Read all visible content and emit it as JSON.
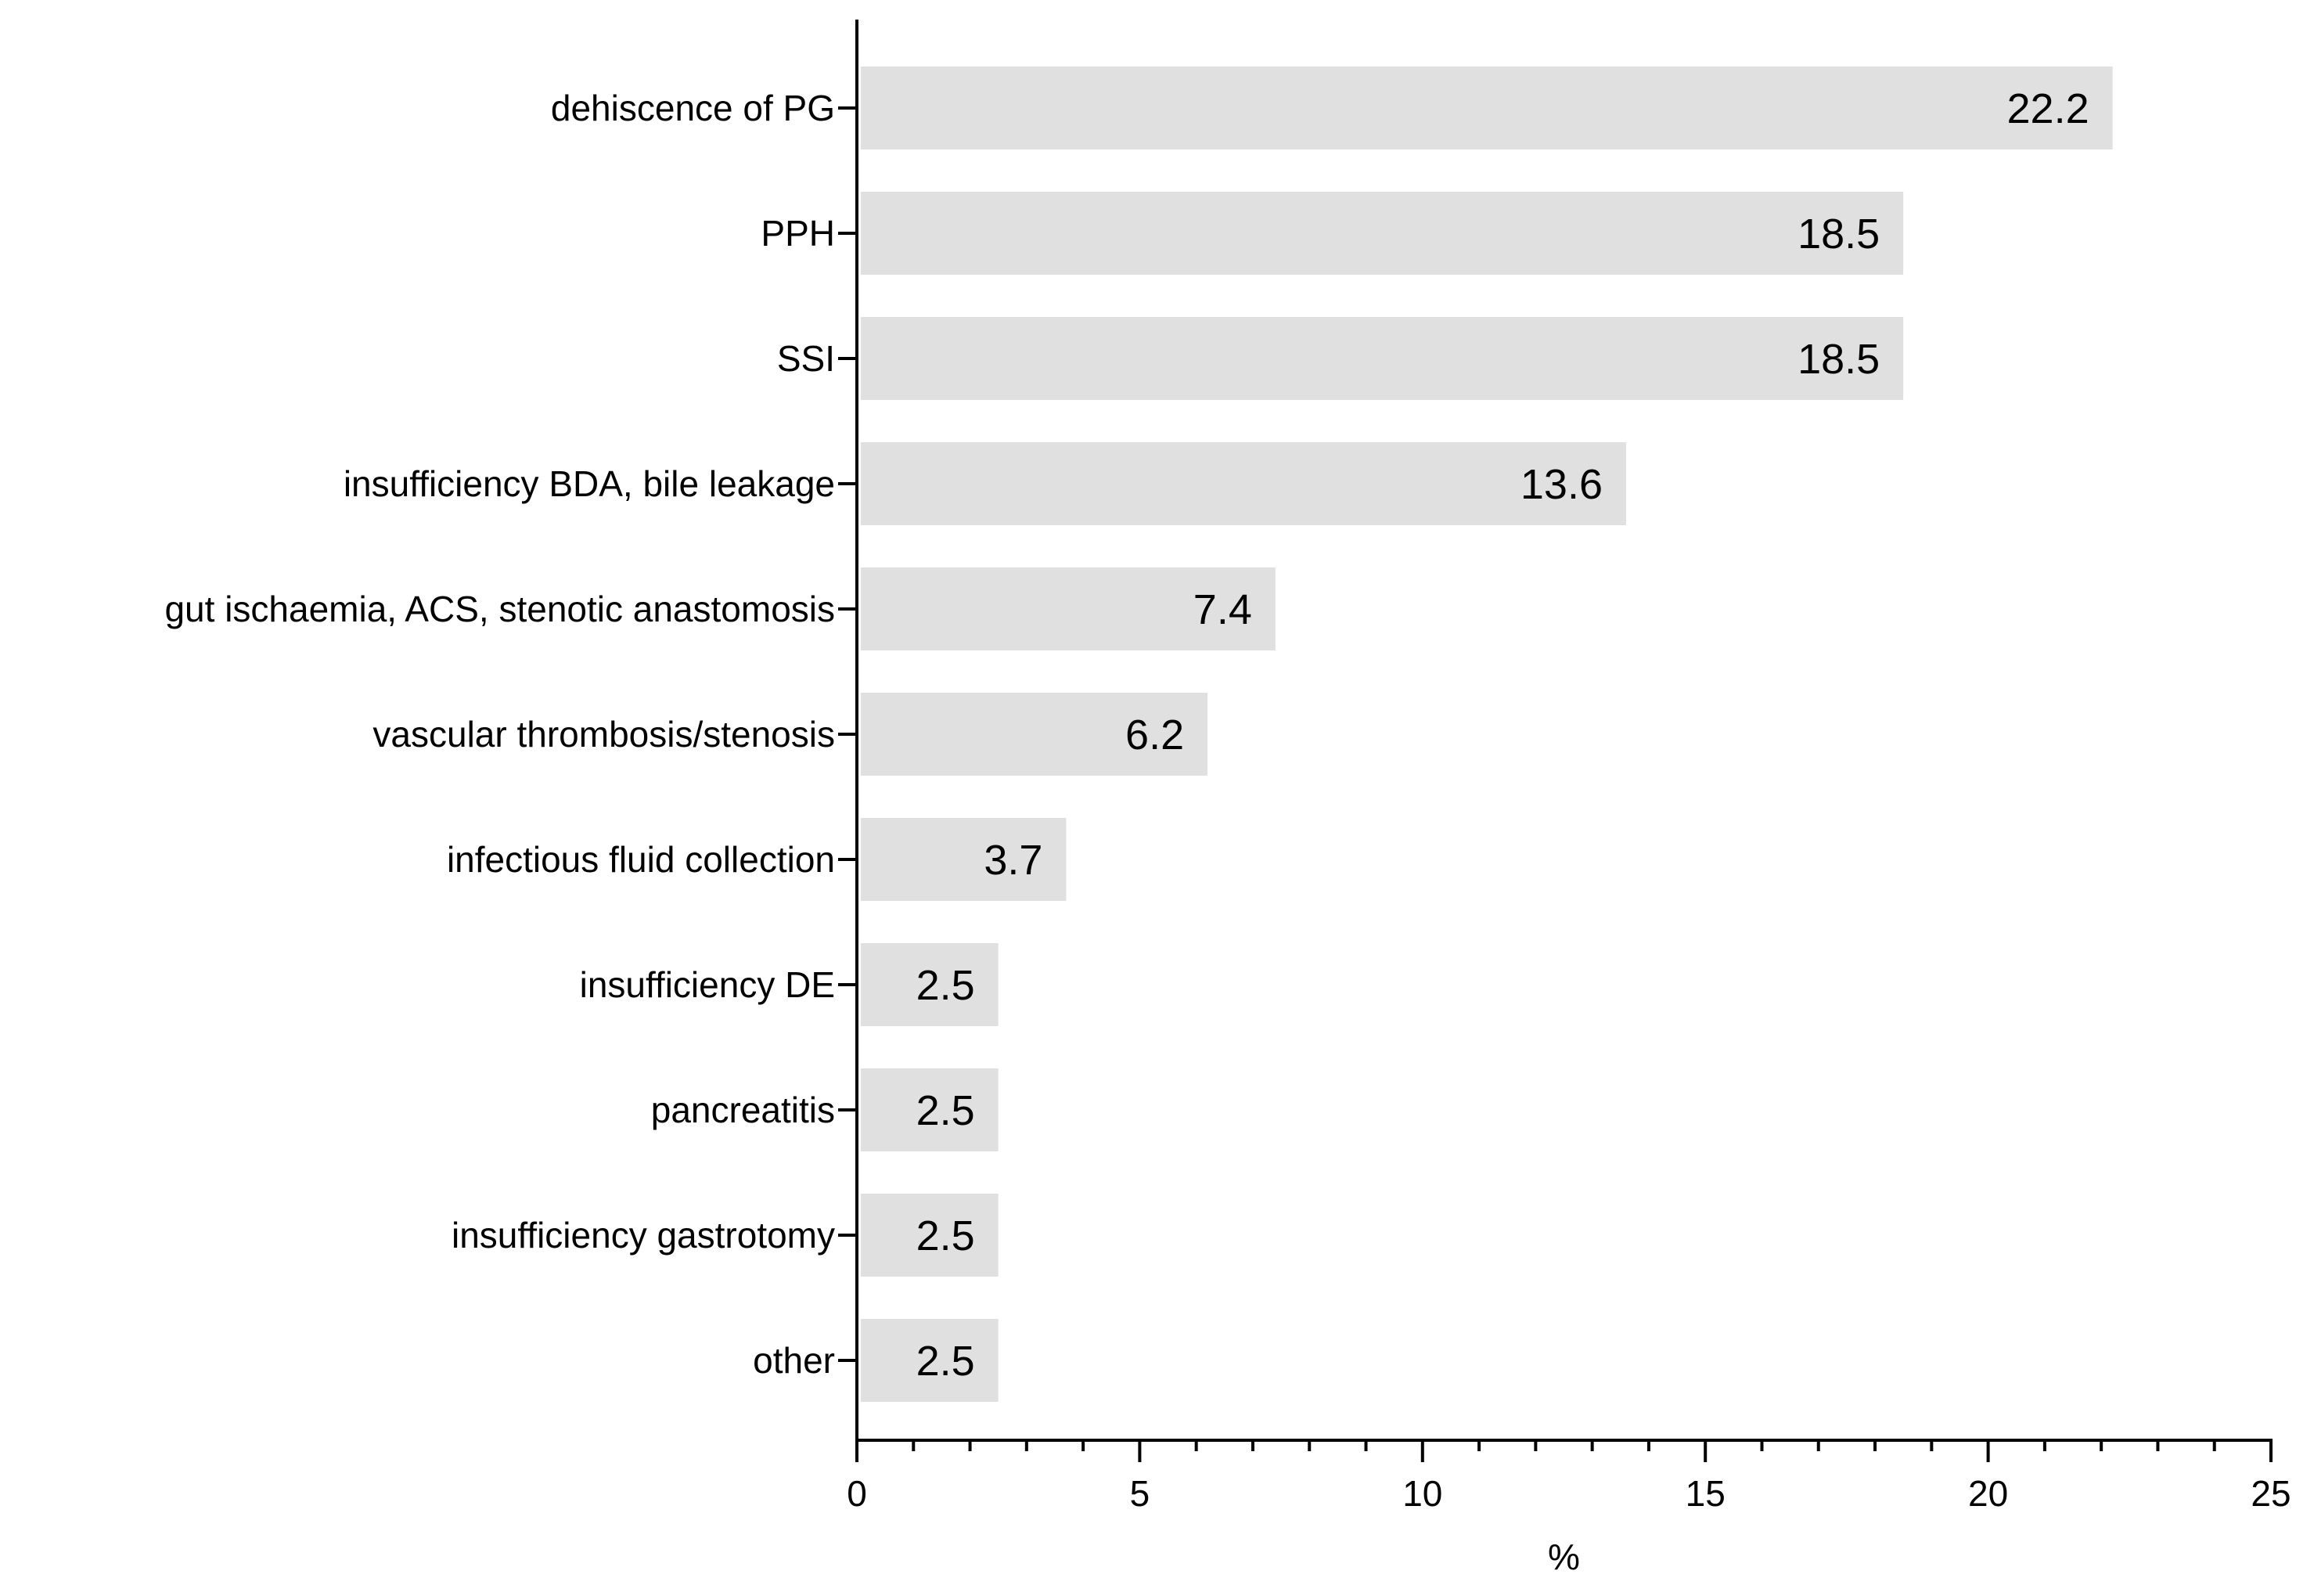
{
  "chart_data": {
    "type": "bar",
    "orientation": "horizontal",
    "categories": [
      "dehiscence of PG",
      "PPH",
      "SSI",
      "insufficiency BDA, bile leakage",
      "gut ischaemia, ACS, stenotic anastomosis",
      "vascular thrombosis/stenosis",
      "infectious fluid collection",
      "insufficiency DE",
      "pancreatitis",
      "insufficiency gastrotomy",
      "other"
    ],
    "values": [
      22.2,
      18.5,
      18.5,
      13.6,
      7.4,
      6.2,
      3.7,
      2.5,
      2.5,
      2.5,
      2.5
    ],
    "value_labels": [
      "22.2",
      "18.5",
      "18.5",
      "13.6",
      "7.4",
      "6.2",
      "3.7",
      "2.5",
      "2.5",
      "2.5",
      "2.5"
    ],
    "title": "",
    "xlabel": "%",
    "ylabel": "",
    "xlim": [
      0,
      25
    ],
    "xticks": [
      0,
      5,
      10,
      15,
      20,
      25
    ],
    "xtick_labels": [
      "0",
      "5",
      "10",
      "15",
      "20",
      "25"
    ],
    "minor_tick_step": 1,
    "grid": false,
    "legend": "none",
    "bar_color": "#e0e0e0",
    "axis_color": "#000000"
  }
}
